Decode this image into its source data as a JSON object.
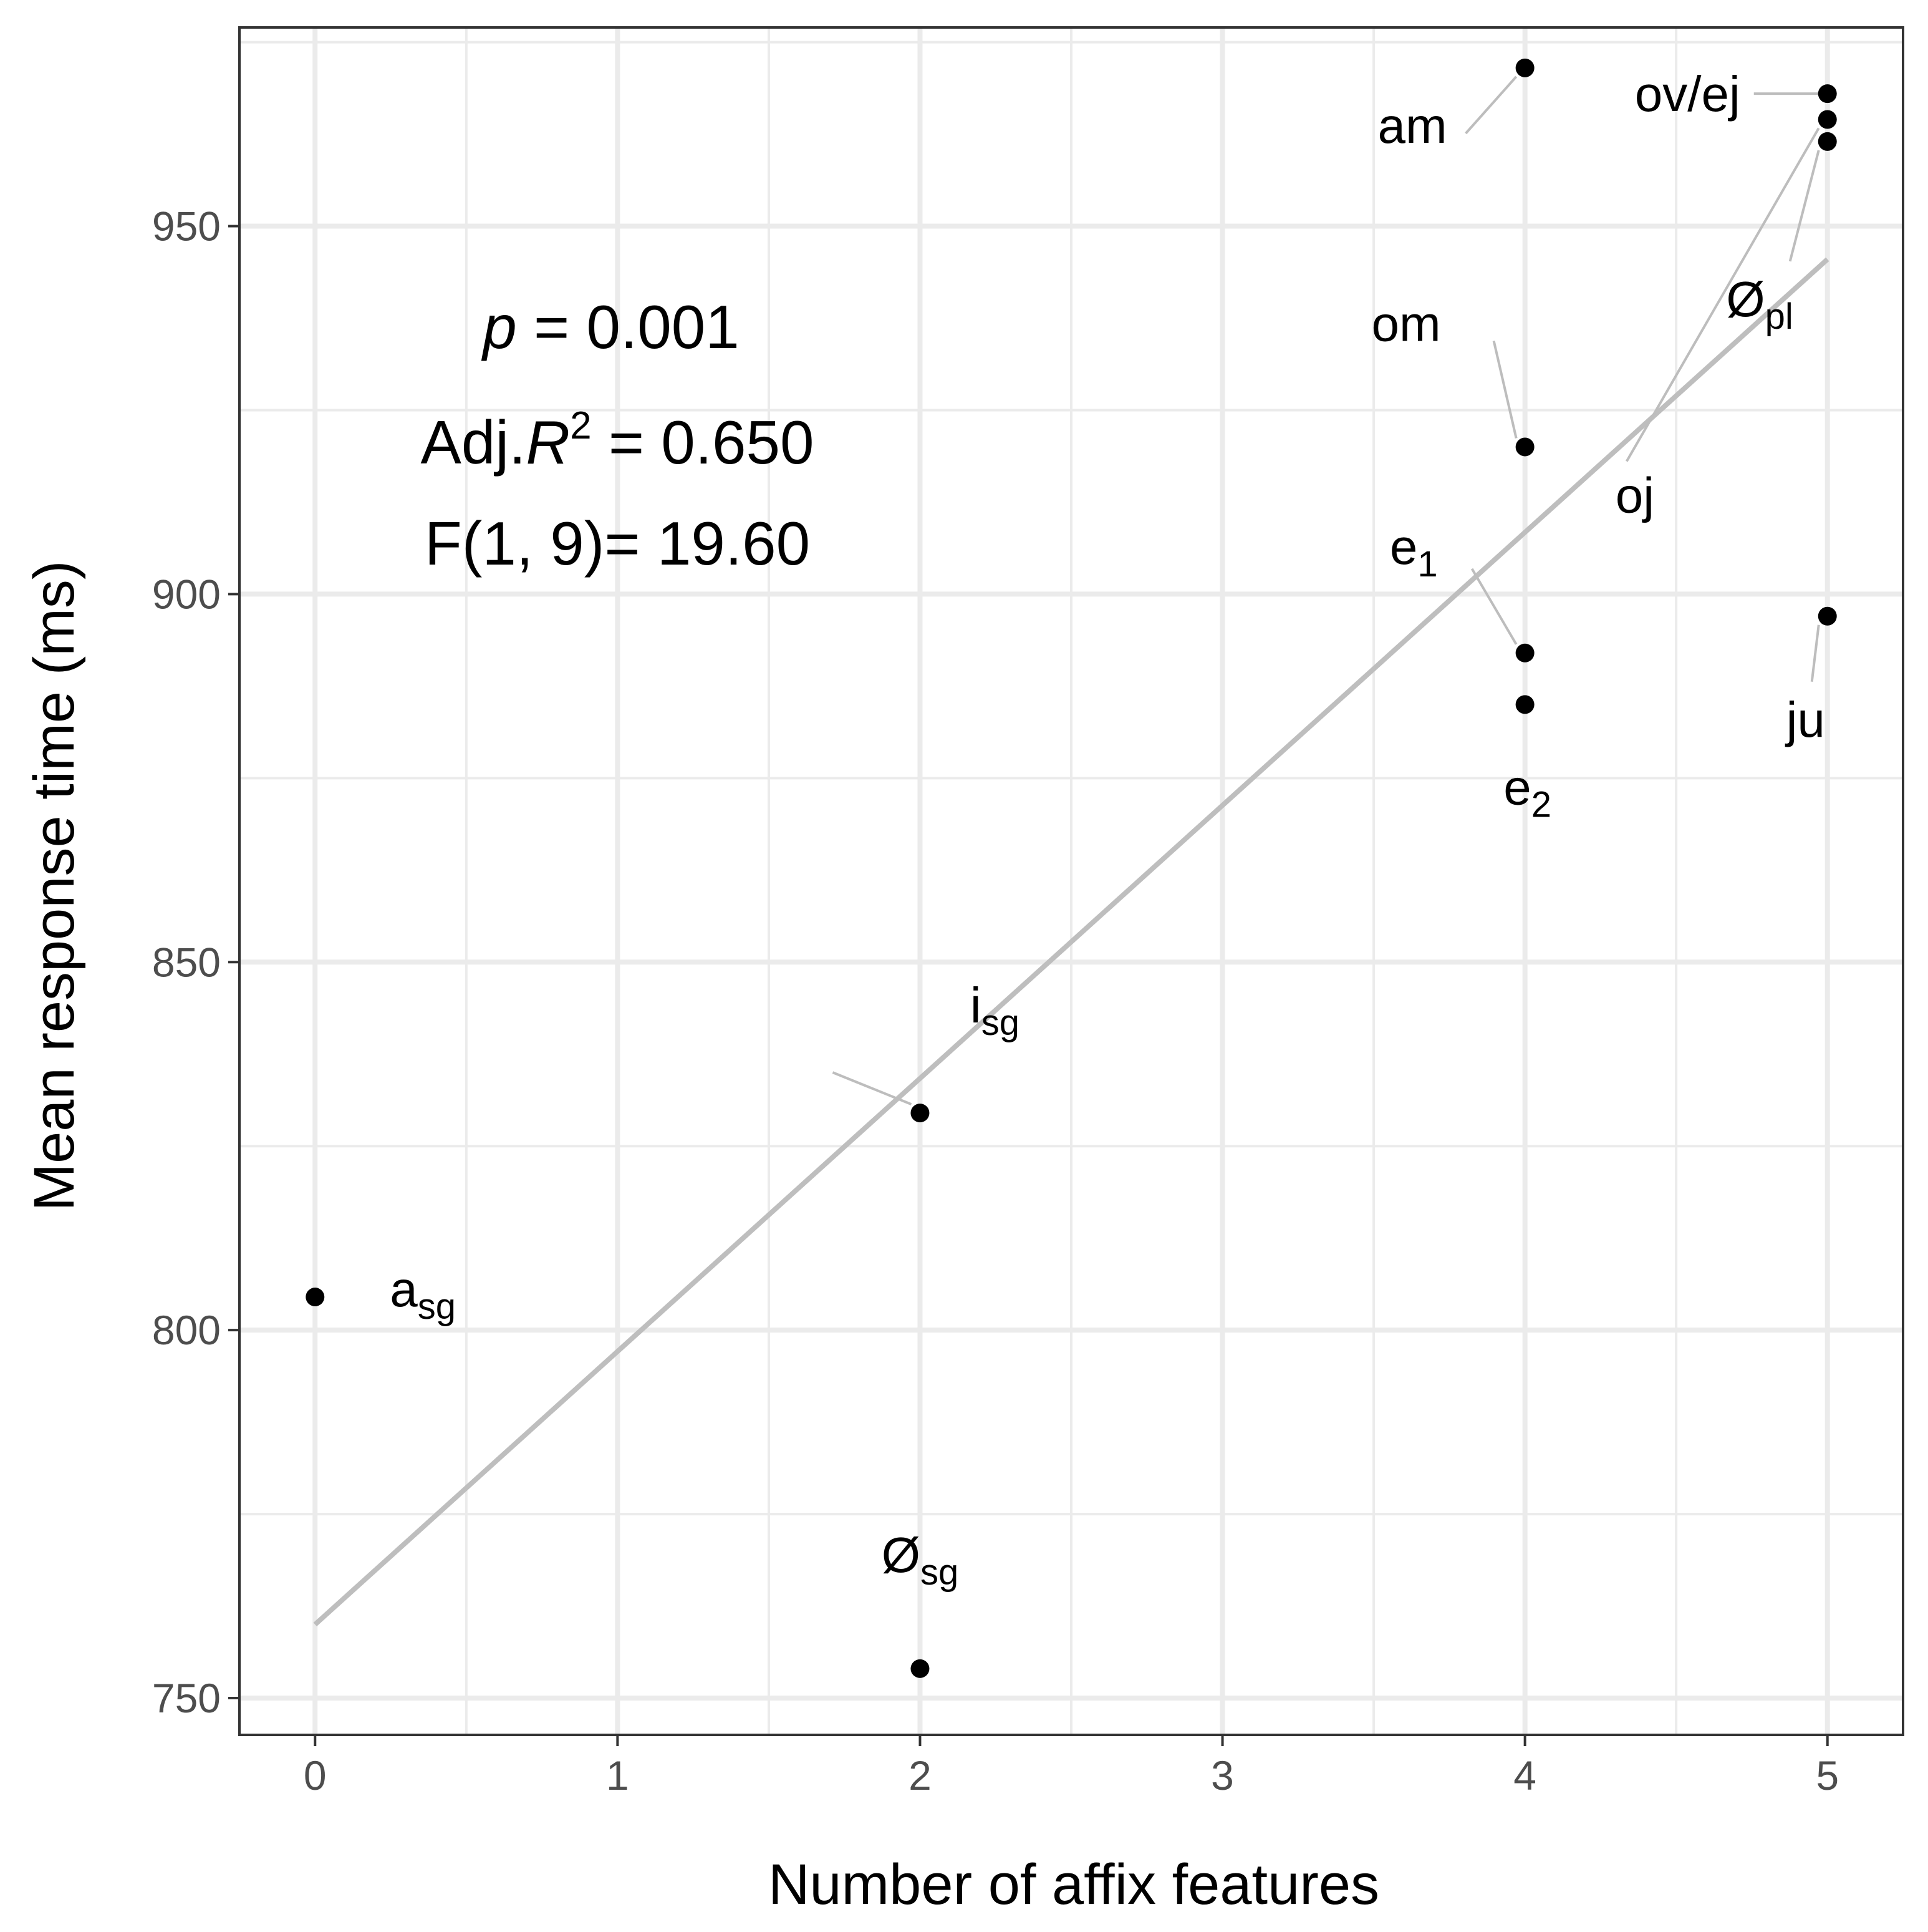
{
  "chart_data": {
    "type": "scatter",
    "xlabel": "Number of affix features",
    "ylabel": "Mean response time (ms)",
    "xlim": [
      -0.25,
      5.25
    ],
    "ylim": [
      745,
      977
    ],
    "x_ticks": [
      0,
      1,
      2,
      3,
      4,
      5
    ],
    "y_ticks": [
      750,
      800,
      850,
      900,
      950
    ],
    "x_minor": [
      0.5,
      1.5,
      2.5,
      3.5,
      4.5
    ],
    "y_minor": [
      775,
      825,
      875,
      925,
      975
    ],
    "grid": true,
    "point_color": "#000000",
    "fit_color": "#bebebe",
    "grid_color": "#ebebeb",
    "points": [
      {
        "x": 0,
        "y": 804.5,
        "label": "a",
        "sub": "sg"
      },
      {
        "x": 2,
        "y": 829.5,
        "label": "i",
        "sub": "sg"
      },
      {
        "x": 2,
        "y": 754,
        "label": "Ø",
        "sub": "sg"
      },
      {
        "x": 4,
        "y": 971.5,
        "label": "am",
        "sub": ""
      },
      {
        "x": 4,
        "y": 920,
        "label": "om",
        "sub": ""
      },
      {
        "x": 4,
        "y": 892,
        "label": "e",
        "sub": "1"
      },
      {
        "x": 4,
        "y": 885,
        "label": "e",
        "sub": "2"
      },
      {
        "x": 5,
        "y": 968,
        "label": "ov/ej",
        "sub": ""
      },
      {
        "x": 5,
        "y": 964.5,
        "label": "oj",
        "sub": ""
      },
      {
        "x": 5,
        "y": 961.5,
        "label": "Ø",
        "sub": "pl"
      },
      {
        "x": 5,
        "y": 897,
        "label": "ju",
        "sub": ""
      }
    ],
    "fit_line": {
      "x": [
        0,
        5
      ],
      "y": [
        760,
        945.5
      ]
    },
    "annotations": {
      "p_symbol": "p",
      "p_value": " = 0.001",
      "r2_prefix": "Adj.",
      "r2_symbol": "R",
      "r2_exponent": "2",
      "r2_value": " = 0.650",
      "f_stat": "F(1, 9)= 19.60"
    }
  }
}
